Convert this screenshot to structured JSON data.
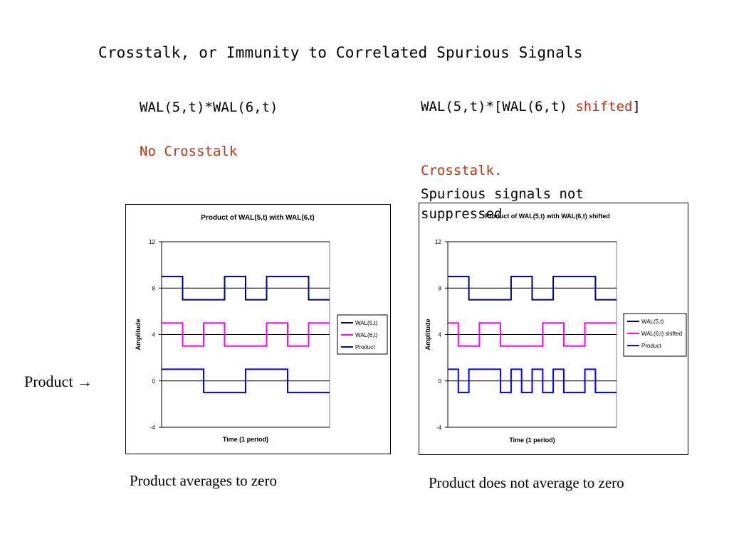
{
  "slide": {
    "title": "Crosstalk, or Immunity to Correlated Spurious Signals",
    "left_heading": "WAL(5,t)*WAL(6,t)",
    "left_note": "No Crosstalk",
    "right_heading_part1": "WAL(5,t)*[WAL(6,t) ",
    "right_heading_part2": "shifted",
    "right_heading_part3": "]",
    "right_note1": "Crosstalk.",
    "right_note2": "Spurious signals not suppressed",
    "product_label": "Product",
    "product_arrow": "→",
    "left_caption": "Product averages to zero",
    "right_caption": "Product does not average to zero"
  },
  "colors": {
    "wal5": "#000080",
    "wal6": "#ff00ff",
    "product": "#0000ff",
    "accent_red": "#c0320f"
  },
  "chart_data": [
    {
      "type": "line",
      "title": "Product of WAL(5,t) with WAL(6,t)",
      "xlabel": "Time (1 period)",
      "ylabel": "Amplitude",
      "ylim": [
        -4,
        12
      ],
      "xlim": [
        0,
        1
      ],
      "yticks": [
        "12",
        "8",
        "4",
        "0",
        "-4"
      ],
      "grid": true,
      "legend_position": "right",
      "series": [
        {
          "name": "WAL(5,t)",
          "color_key": "wal5",
          "x": [
            0,
            0.125,
            0.125,
            0.375,
            0.375,
            0.5,
            0.5,
            0.625,
            0.625,
            0.875,
            0.875,
            1
          ],
          "y": [
            9,
            9,
            7,
            7,
            9,
            9,
            7,
            7,
            9,
            9,
            7,
            7
          ]
        },
        {
          "name": "WAL(6,t)",
          "color_key": "wal6",
          "x": [
            0,
            0.125,
            0.125,
            0.25,
            0.25,
            0.375,
            0.375,
            0.625,
            0.625,
            0.75,
            0.75,
            0.875,
            0.875,
            1
          ],
          "y": [
            5,
            5,
            3,
            3,
            5,
            5,
            3,
            3,
            5,
            5,
            3,
            3,
            5,
            5
          ]
        },
        {
          "name": "Product",
          "color_key": "product",
          "x": [
            0,
            0.25,
            0.25,
            0.5,
            0.5,
            0.75,
            0.75,
            1
          ],
          "y": [
            1,
            1,
            -1,
            -1,
            1,
            1,
            -1,
            -1
          ]
        }
      ]
    },
    {
      "type": "line",
      "title": "Product of WAL(5,t) with WAL(6,t) shifted",
      "xlabel": "Time (1 period)",
      "ylabel": "Amplitude",
      "ylim": [
        -4,
        12
      ],
      "xlim": [
        0,
        1
      ],
      "yticks": [
        "12",
        "8",
        "4",
        "0",
        "-4"
      ],
      "grid": true,
      "legend_position": "right",
      "series": [
        {
          "name": "WAL(5,t)",
          "color_key": "wal5",
          "x": [
            0,
            0.125,
            0.125,
            0.375,
            0.375,
            0.5,
            0.5,
            0.625,
            0.625,
            0.875,
            0.875,
            1
          ],
          "y": [
            9,
            9,
            7,
            7,
            9,
            9,
            7,
            7,
            9,
            9,
            7,
            7
          ]
        },
        {
          "name": "WAL(6,t) shifted",
          "color_key": "wal6",
          "x": [
            0,
            0.0625,
            0.0625,
            0.1875,
            0.1875,
            0.3125,
            0.3125,
            0.5625,
            0.5625,
            0.6875,
            0.6875,
            0.8125,
            0.8125,
            1
          ],
          "y": [
            5,
            5,
            3,
            3,
            5,
            5,
            3,
            3,
            5,
            5,
            3,
            3,
            5,
            5
          ]
        },
        {
          "name": "Product",
          "color_key": "product",
          "x": [
            0,
            0.0625,
            0.0625,
            0.125,
            0.125,
            0.1875,
            0.1875,
            0.3125,
            0.3125,
            0.375,
            0.375,
            0.4375,
            0.4375,
            0.5,
            0.5,
            0.5625,
            0.5625,
            0.625,
            0.625,
            0.6875,
            0.6875,
            0.8125,
            0.8125,
            0.875,
            0.875,
            0.9375,
            0.9375,
            1
          ],
          "y": [
            1,
            1,
            -1,
            -1,
            1,
            1,
            1,
            1,
            -1,
            -1,
            1,
            1,
            -1,
            -1,
            1,
            1,
            -1,
            -1,
            1,
            1,
            -1,
            -1,
            1,
            1,
            -1,
            -1,
            -1,
            -1
          ]
        }
      ]
    }
  ]
}
